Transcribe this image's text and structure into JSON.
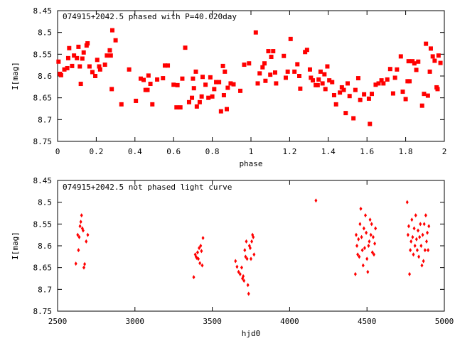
{
  "chart_data": [
    {
      "type": "scatter",
      "title": "074915+2042.5 phased with P=40.020day",
      "xlabel": "phase",
      "ylabel": "I[mag]",
      "xlim": [
        0,
        2
      ],
      "ylim": [
        8.75,
        8.45
      ],
      "y_inverted": true,
      "xticks": [
        "0",
        "0.2",
        "0.4",
        "0.6",
        "0.8",
        "1",
        "1.2",
        "1.4",
        "1.6",
        "1.8",
        "2"
      ],
      "yticks": [
        "8.45",
        "8.5",
        "8.55",
        "8.6",
        "8.65",
        "8.7",
        "8.75"
      ],
      "grid": false,
      "marker": "filled-square",
      "color": "#ff0000",
      "points": [
        [
          0.005,
          8.567
        ],
        [
          0.012,
          8.595
        ],
        [
          0.018,
          8.598
        ],
        [
          0.035,
          8.585
        ],
        [
          0.05,
          8.582
        ],
        [
          0.055,
          8.559
        ],
        [
          0.06,
          8.536
        ],
        [
          0.075,
          8.577
        ],
        [
          0.085,
          8.553
        ],
        [
          0.1,
          8.559
        ],
        [
          0.108,
          8.533
        ],
        [
          0.115,
          8.578
        ],
        [
          0.12,
          8.618
        ],
        [
          0.128,
          8.56
        ],
        [
          0.135,
          8.546
        ],
        [
          0.15,
          8.53
        ],
        [
          0.155,
          8.525
        ],
        [
          0.165,
          8.578
        ],
        [
          0.18,
          8.591
        ],
        [
          0.195,
          8.6
        ],
        [
          0.205,
          8.563
        ],
        [
          0.215,
          8.578
        ],
        [
          0.22,
          8.585
        ],
        [
          0.245,
          8.574
        ],
        [
          0.255,
          8.553
        ],
        [
          0.27,
          8.541
        ],
        [
          0.275,
          8.553
        ],
        [
          0.28,
          8.63
        ],
        [
          0.283,
          8.495
        ],
        [
          0.3,
          8.518
        ],
        [
          0.33,
          8.665
        ],
        [
          0.37,
          8.585
        ],
        [
          0.405,
          8.657
        ],
        [
          0.43,
          8.606
        ],
        [
          0.445,
          8.609
        ],
        [
          0.455,
          8.632
        ],
        [
          0.465,
          8.632
        ],
        [
          0.47,
          8.599
        ],
        [
          0.48,
          8.618
        ],
        [
          0.49,
          8.665
        ],
        [
          0.515,
          8.608
        ],
        [
          0.545,
          8.605
        ],
        [
          0.555,
          8.576
        ],
        [
          0.57,
          8.576
        ],
        [
          0.6,
          8.62
        ],
        [
          0.615,
          8.672
        ],
        [
          0.62,
          8.621
        ],
        [
          0.635,
          8.672
        ],
        [
          0.645,
          8.606
        ],
        [
          0.66,
          8.535
        ],
        [
          0.68,
          8.66
        ],
        [
          0.695,
          8.65
        ],
        [
          0.7,
          8.606
        ],
        [
          0.705,
          8.628
        ],
        [
          0.715,
          8.59
        ],
        [
          0.72,
          8.67
        ],
        [
          0.735,
          8.66
        ],
        [
          0.745,
          8.647
        ],
        [
          0.75,
          8.602
        ],
        [
          0.765,
          8.62
        ],
        [
          0.78,
          8.65
        ],
        [
          0.79,
          8.603
        ],
        [
          0.8,
          8.647
        ],
        [
          0.81,
          8.63
        ],
        [
          0.82,
          8.614
        ],
        [
          0.835,
          8.614
        ],
        [
          0.845,
          8.681
        ],
        [
          0.855,
          8.577
        ],
        [
          0.86,
          8.644
        ],
        [
          0.865,
          8.59
        ],
        [
          0.875,
          8.676
        ],
        [
          0.88,
          8.627
        ],
        [
          0.895,
          8.617
        ],
        [
          0.91,
          8.619
        ],
        [
          0.945,
          8.634
        ],
        [
          0.965,
          8.574
        ],
        [
          0.99,
          8.571
        ],
        [
          1.025,
          8.5
        ],
        [
          1.035,
          8.617
        ],
        [
          1.045,
          8.594
        ],
        [
          1.06,
          8.58
        ],
        [
          1.07,
          8.571
        ],
        [
          1.075,
          8.611
        ],
        [
          1.09,
          8.543
        ],
        [
          1.1,
          8.597
        ],
        [
          1.105,
          8.556
        ],
        [
          1.115,
          8.543
        ],
        [
          1.125,
          8.592
        ],
        [
          1.13,
          8.617
        ],
        [
          1.17,
          8.554
        ],
        [
          1.18,
          8.604
        ],
        [
          1.19,
          8.59
        ],
        [
          1.205,
          8.515
        ],
        [
          1.225,
          8.59
        ],
        [
          1.24,
          8.573
        ],
        [
          1.25,
          8.6
        ],
        [
          1.255,
          8.629
        ],
        [
          1.28,
          8.545
        ],
        [
          1.29,
          8.54
        ],
        [
          1.305,
          8.585
        ],
        [
          1.31,
          8.604
        ],
        [
          1.32,
          8.61
        ],
        [
          1.335,
          8.621
        ],
        [
          1.345,
          8.621
        ],
        [
          1.35,
          8.608
        ],
        [
          1.36,
          8.59
        ],
        [
          1.37,
          8.617
        ],
        [
          1.38,
          8.596
        ],
        [
          1.385,
          8.63
        ],
        [
          1.395,
          8.578
        ],
        [
          1.405,
          8.61
        ],
        [
          1.42,
          8.614
        ],
        [
          1.43,
          8.644
        ],
        [
          1.44,
          8.665
        ],
        [
          1.46,
          8.638
        ],
        [
          1.47,
          8.626
        ],
        [
          1.48,
          8.632
        ],
        [
          1.49,
          8.685
        ],
        [
          1.5,
          8.617
        ],
        [
          1.51,
          8.646
        ],
        [
          1.53,
          8.697
        ],
        [
          1.54,
          8.632
        ],
        [
          1.555,
          8.605
        ],
        [
          1.565,
          8.655
        ],
        [
          1.585,
          8.642
        ],
        [
          1.61,
          8.652
        ],
        [
          1.615,
          8.71
        ],
        [
          1.625,
          8.641
        ],
        [
          1.645,
          8.62
        ],
        [
          1.66,
          8.617
        ],
        [
          1.675,
          8.61
        ],
        [
          1.685,
          8.617
        ],
        [
          1.705,
          8.608
        ],
        [
          1.72,
          8.584
        ],
        [
          1.735,
          8.64
        ],
        [
          1.745,
          8.604
        ],
        [
          1.755,
          8.585
        ],
        [
          1.775,
          8.555
        ],
        [
          1.785,
          8.636
        ],
        [
          1.8,
          8.653
        ],
        [
          1.81,
          8.612
        ],
        [
          1.815,
          8.566
        ],
        [
          1.82,
          8.612
        ],
        [
          1.835,
          8.566
        ],
        [
          1.845,
          8.571
        ],
        [
          1.855,
          8.586
        ],
        [
          1.865,
          8.567
        ],
        [
          1.885,
          8.668
        ],
        [
          1.895,
          8.641
        ],
        [
          1.905,
          8.526
        ],
        [
          1.915,
          8.645
        ],
        [
          1.925,
          8.59
        ],
        [
          1.93,
          8.537
        ],
        [
          1.94,
          8.555
        ],
        [
          1.95,
          8.565
        ],
        [
          1.96,
          8.626
        ],
        [
          1.965,
          8.63
        ],
        [
          1.97,
          8.553
        ],
        [
          1.98,
          8.57
        ]
      ]
    },
    {
      "type": "scatter",
      "title": "074915+2042.5 not phased light curve",
      "xlabel": "hjd0",
      "ylabel": "I[mag]",
      "xlim": [
        2500,
        5000
      ],
      "ylim": [
        8.75,
        8.45
      ],
      "y_inverted": true,
      "xticks": [
        "2500",
        "3000",
        "3500",
        "4000",
        "4500",
        "5000"
      ],
      "yticks": [
        "8.45",
        "8.5",
        "8.55",
        "8.6",
        "8.65",
        "8.7",
        "8.75"
      ],
      "grid": false,
      "marker": "diamond",
      "color": "#ff0000",
      "points": [
        [
          2618,
          8.641
        ],
        [
          2630,
          8.575
        ],
        [
          2635,
          8.61
        ],
        [
          2640,
          8.58
        ],
        [
          2645,
          8.555
        ],
        [
          2650,
          8.545
        ],
        [
          2655,
          8.53
        ],
        [
          2660,
          8.56
        ],
        [
          2665,
          8.565
        ],
        [
          2670,
          8.65
        ],
        [
          2675,
          8.642
        ],
        [
          2685,
          8.59
        ],
        [
          2695,
          8.575
        ],
        [
          3380,
          8.672
        ],
        [
          3390,
          8.62
        ],
        [
          3395,
          8.625
        ],
        [
          3400,
          8.628
        ],
        [
          3405,
          8.615
        ],
        [
          3410,
          8.63
        ],
        [
          3415,
          8.605
        ],
        [
          3420,
          8.64
        ],
        [
          3425,
          8.6
        ],
        [
          3430,
          8.612
        ],
        [
          3435,
          8.645
        ],
        [
          3440,
          8.582
        ],
        [
          3650,
          8.635
        ],
        [
          3660,
          8.648
        ],
        [
          3670,
          8.66
        ],
        [
          3680,
          8.665
        ],
        [
          3690,
          8.65
        ],
        [
          3695,
          8.675
        ],
        [
          3700,
          8.67
        ],
        [
          3705,
          8.68
        ],
        [
          3710,
          8.61
        ],
        [
          3715,
          8.625
        ],
        [
          3720,
          8.59
        ],
        [
          3725,
          8.63
        ],
        [
          3730,
          8.69
        ],
        [
          3735,
          8.71
        ],
        [
          3740,
          8.6
        ],
        [
          3745,
          8.605
        ],
        [
          3750,
          8.63
        ],
        [
          3755,
          8.59
        ],
        [
          3760,
          8.575
        ],
        [
          3765,
          8.58
        ],
        [
          3770,
          8.62
        ],
        [
          4170,
          8.496
        ],
        [
          4425,
          8.665
        ],
        [
          4430,
          8.575
        ],
        [
          4435,
          8.6
        ],
        [
          4440,
          8.62
        ],
        [
          4445,
          8.585
        ],
        [
          4450,
          8.625
        ],
        [
          4455,
          8.55
        ],
        [
          4460,
          8.515
        ],
        [
          4465,
          8.58
        ],
        [
          4470,
          8.61
        ],
        [
          4475,
          8.645
        ],
        [
          4480,
          8.56
        ],
        [
          4485,
          8.605
        ],
        [
          4490,
          8.53
        ],
        [
          4495,
          8.57
        ],
        [
          4500,
          8.63
        ],
        [
          4505,
          8.66
        ],
        [
          4510,
          8.6
        ],
        [
          4515,
          8.59
        ],
        [
          4520,
          8.54
        ],
        [
          4525,
          8.575
        ],
        [
          4530,
          8.55
        ],
        [
          4535,
          8.615
        ],
        [
          4540,
          8.58
        ],
        [
          4545,
          8.62
        ],
        [
          4550,
          8.595
        ],
        [
          4555,
          8.56
        ],
        [
          4760,
          8.5
        ],
        [
          4765,
          8.575
        ],
        [
          4770,
          8.555
        ],
        [
          4775,
          8.665
        ],
        [
          4780,
          8.61
        ],
        [
          4785,
          8.59
        ],
        [
          4790,
          8.54
        ],
        [
          4795,
          8.58
        ],
        [
          4800,
          8.62
        ],
        [
          4805,
          8.56
        ],
        [
          4810,
          8.6
        ],
        [
          4815,
          8.53
        ],
        [
          4820,
          8.585
        ],
        [
          4825,
          8.61
        ],
        [
          4830,
          8.565
        ],
        [
          4835,
          8.625
        ],
        [
          4840,
          8.58
        ],
        [
          4845,
          8.55
        ],
        [
          4850,
          8.6
        ],
        [
          4855,
          8.645
        ],
        [
          4860,
          8.575
        ],
        [
          4865,
          8.635
        ],
        [
          4870,
          8.55
        ],
        [
          4875,
          8.61
        ],
        [
          4880,
          8.53
        ],
        [
          4885,
          8.59
        ],
        [
          4890,
          8.57
        ],
        [
          4895,
          8.61
        ],
        [
          4900,
          8.555
        ]
      ]
    }
  ]
}
